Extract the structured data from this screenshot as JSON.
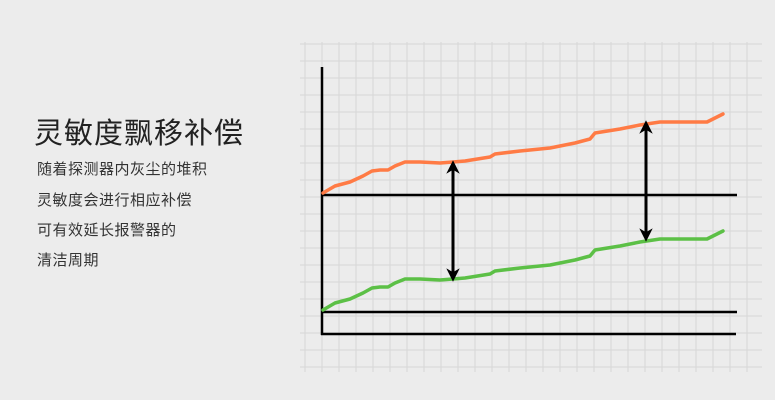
{
  "heading": "灵敏度飘移补偿",
  "description_lines": [
    "随着探测器内灰尘的堆积",
    "灵敏度会进行相应补偿",
    "可有效延长报警器的",
    "清洁周期"
  ],
  "colors": {
    "background": "#ececec",
    "grid": "#d6d6d6",
    "upper_curve": "#ff7b45",
    "lower_curve": "#5cc046",
    "axes": "#000000"
  },
  "icons": [
    "double-arrow-icon",
    "double-arrow-icon"
  ]
}
